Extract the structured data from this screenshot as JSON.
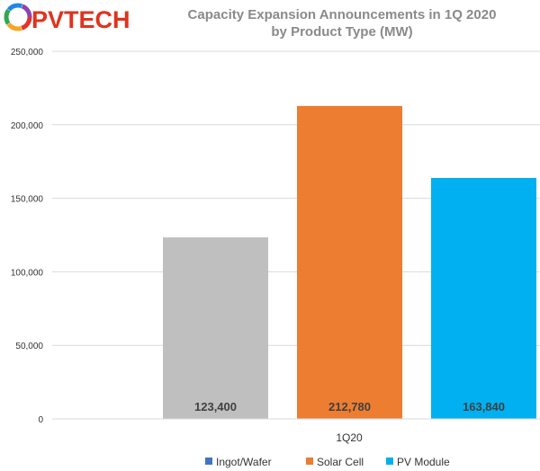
{
  "logo": {
    "text": "PVTECH",
    "ring_colors": [
      "#e5322d",
      "#f5a623",
      "#2fa84f",
      "#1e88e5",
      "#8e44ad"
    ]
  },
  "chart_data": {
    "type": "bar",
    "title": "Capacity Expansion Announcements in 1Q 2020",
    "subtitle": "by Product Type (MW)",
    "categories": [
      "1Q20"
    ],
    "series": [
      {
        "name": "Ingot/Wafer",
        "values": [
          null
        ],
        "label": "",
        "color": "#4472c4"
      },
      {
        "name": "Ingot/Wafer",
        "values": [
          123400
        ],
        "label": "123,400",
        "color": "#bfbfbf",
        "legend": false
      },
      {
        "name": "Solar Cell",
        "values": [
          212780
        ],
        "label": "212,780",
        "color": "#ed7d31"
      },
      {
        "name": "PV Module",
        "values": [
          163840
        ],
        "label": "163,840",
        "color": "#00b0f0"
      }
    ],
    "ylim": [
      0,
      250000
    ],
    "yticks": [
      "0",
      "50,000",
      "100,000",
      "150,000",
      "200,000",
      "250,000"
    ],
    "ytick_values": [
      0,
      50000,
      100000,
      150000,
      200000,
      250000
    ],
    "grid": true,
    "legend": {
      "position": "bottom",
      "entries": [
        {
          "name": "Ingot/Wafer",
          "color": "#4472c4"
        },
        {
          "name": "Solar Cell",
          "color": "#ed7d31"
        },
        {
          "name": "PV Module",
          "color": "#00b0f0"
        }
      ]
    }
  }
}
